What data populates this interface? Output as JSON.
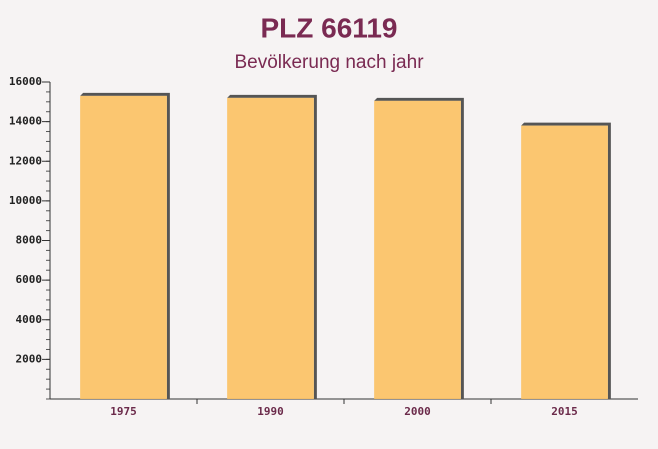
{
  "chart_data": {
    "type": "bar",
    "title": "PLZ 66119",
    "subtitle": "Bevölkerung nach jahr",
    "categories": [
      "1975",
      "1990",
      "2000",
      "2015"
    ],
    "values": [
      15300,
      15200,
      15050,
      13800
    ],
    "color": "#fbc265",
    "ylim": [
      0,
      16000
    ],
    "yticks": [
      2000,
      4000,
      6000,
      8000,
      10000,
      12000,
      14000,
      16000
    ],
    "grid": false
  }
}
